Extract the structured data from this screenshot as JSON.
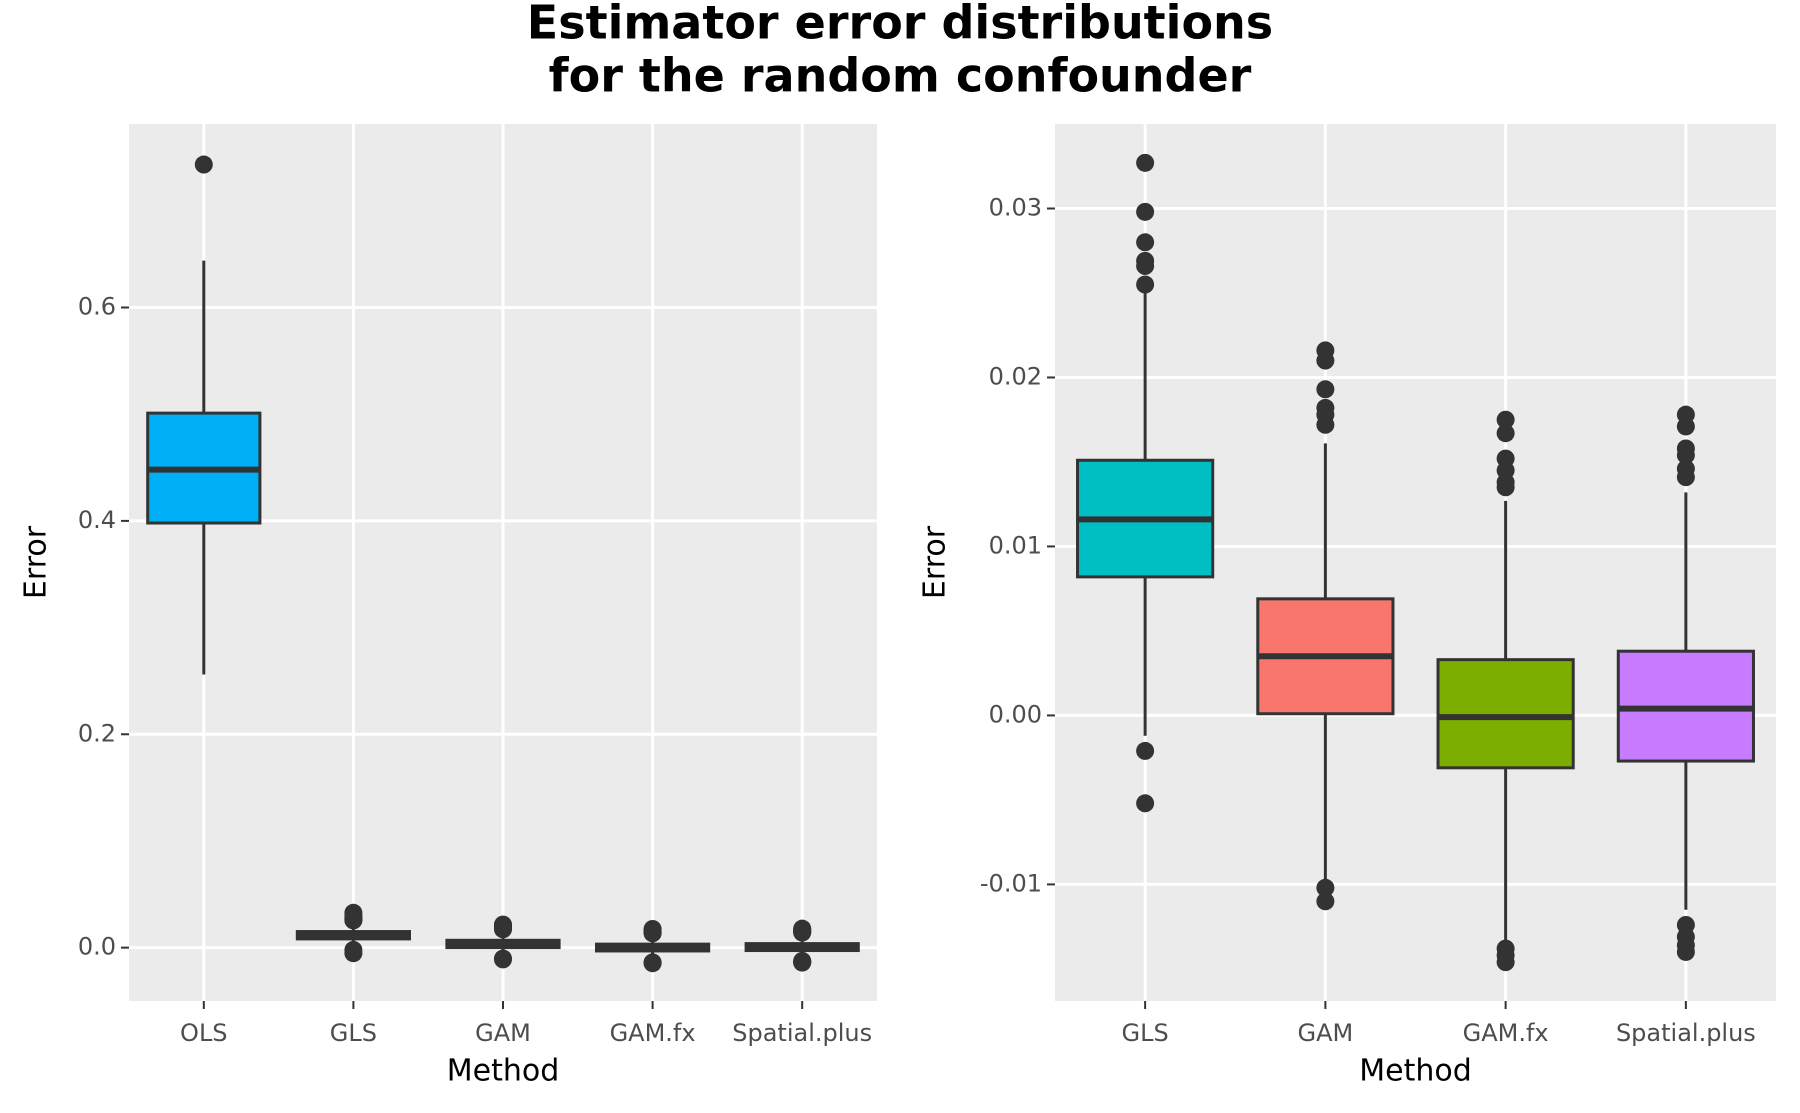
{
  "title": [
    "Estimator error distributions",
    "for the random confounder"
  ],
  "chart_data": [
    {
      "type": "box",
      "xlabel": "Method",
      "ylabel": "Error",
      "categories": [
        "OLS",
        "GLS",
        "GAM",
        "GAM.fx",
        "Spatial.plus"
      ],
      "ylim": [
        -0.05,
        0.772
      ],
      "yticks": [
        {
          "value": 0,
          "label": "0.0"
        },
        0.2,
        0.4,
        0.6
      ],
      "grid": true,
      "boxes": [
        {
          "color": "#00b0f6",
          "low": 0.256,
          "q1": 0.398,
          "median": 0.448,
          "q3": 0.501,
          "high": 0.644,
          "outliers": [
            0.734
          ]
        },
        {
          "color": "#00bfc4",
          "low": -0.0012,
          "q1": 0.0082,
          "median": 0.0116,
          "q3": 0.0151,
          "high": 0.025,
          "outliers": [
            0.0327,
            0.0298,
            0.028,
            0.0269,
            0.0266,
            0.0255,
            -0.0021,
            -0.0052
          ]
        },
        {
          "color": "#f8766d",
          "low": -0.0099,
          "q1": 0.0001,
          "median": 0.0035,
          "q3": 0.0069,
          "high": 0.0161,
          "outliers": [
            0.0216,
            0.021,
            0.0193,
            0.0182,
            0.0178,
            0.0172,
            -0.0102,
            -0.011
          ]
        },
        {
          "color": "#7cae00",
          "low": -0.0134,
          "q1": -0.0031,
          "median": -0.0001,
          "q3": 0.0033,
          "high": 0.0127,
          "outliers": [
            0.0175,
            0.0167,
            0.0152,
            0.0145,
            0.0138,
            0.0135,
            -0.0138,
            -0.0142,
            -0.0146
          ]
        },
        {
          "color": "#c77cff",
          "low": -0.0115,
          "q1": -0.0027,
          "median": 0.0004,
          "q3": 0.0038,
          "high": 0.0132,
          "outliers": [
            0.0178,
            0.0171,
            0.0158,
            0.0154,
            0.0146,
            0.0141,
            -0.0124,
            -0.0131,
            -0.0136,
            -0.014
          ]
        }
      ]
    },
    {
      "type": "box",
      "xlabel": "Method",
      "ylabel": "Error",
      "categories": [
        "GLS",
        "GAM",
        "GAM.fx",
        "Spatial.plus"
      ],
      "ylim": [
        -0.0169,
        0.035
      ],
      "yticks": [
        -0.01,
        {
          "value": 0,
          "label": "0.00"
        },
        0.01,
        0.02,
        0.03
      ],
      "grid": true,
      "boxes": [
        {
          "color": "#00bfc4",
          "low": -0.0012,
          "q1": 0.0082,
          "median": 0.0116,
          "q3": 0.0151,
          "high": 0.025,
          "outliers": [
            0.0327,
            0.0298,
            0.028,
            0.0269,
            0.0266,
            0.0255,
            -0.0021,
            -0.0052
          ]
        },
        {
          "color": "#f8766d",
          "low": -0.0099,
          "q1": 0.0001,
          "median": 0.0035,
          "q3": 0.0069,
          "high": 0.0161,
          "outliers": [
            0.0216,
            0.021,
            0.0193,
            0.0182,
            0.0178,
            0.0172,
            -0.0102,
            -0.011
          ]
        },
        {
          "color": "#7cae00",
          "low": -0.0134,
          "q1": -0.0031,
          "median": -0.0001,
          "q3": 0.0033,
          "high": 0.0127,
          "outliers": [
            0.0175,
            0.0167,
            0.0152,
            0.0145,
            0.0138,
            0.0135,
            -0.0138,
            -0.0142,
            -0.0146
          ]
        },
        {
          "color": "#c77cff",
          "low": -0.0115,
          "q1": -0.0027,
          "median": 0.0004,
          "q3": 0.0038,
          "high": 0.0132,
          "outliers": [
            0.0178,
            0.0171,
            0.0158,
            0.0154,
            0.0146,
            0.0141,
            -0.0124,
            -0.0131,
            -0.0136,
            -0.014
          ]
        }
      ]
    }
  ]
}
